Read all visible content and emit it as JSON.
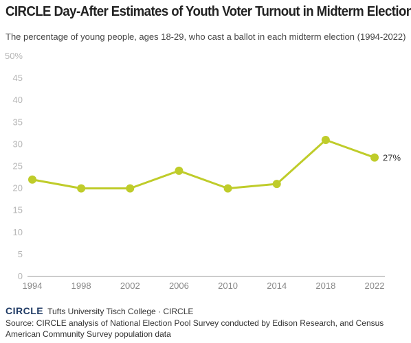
{
  "chart_data": {
    "type": "line",
    "title": "CIRCLE Day-After Estimates of Youth Voter Turnout in Midterm Elections",
    "subtitle": "The percentage of young people, ages 18-29, who cast a ballot in each midterm election (1994-2022)",
    "x": [
      1994,
      1998,
      2002,
      2006,
      2010,
      2014,
      2018,
      2022
    ],
    "series": [
      {
        "values": [
          22,
          20,
          20,
          24,
          20,
          21,
          31,
          27
        ]
      }
    ],
    "ylim": [
      0,
      50
    ],
    "y_ticks": [
      "0",
      "5",
      "10",
      "15",
      "20",
      "25",
      "30",
      "35",
      "40",
      "45",
      "50%"
    ],
    "annotations": [
      {
        "x": 2022,
        "label": "27%"
      }
    ],
    "grid": false,
    "color": "#bfcc2a"
  },
  "footer": {
    "logo": "CIRCLE",
    "org": "Tufts University Tisch College · CIRCLE",
    "source": "Source: CIRCLE analysis of National Election Pool Survey conducted by Edison Research, and Census American Community Survey population data"
  }
}
